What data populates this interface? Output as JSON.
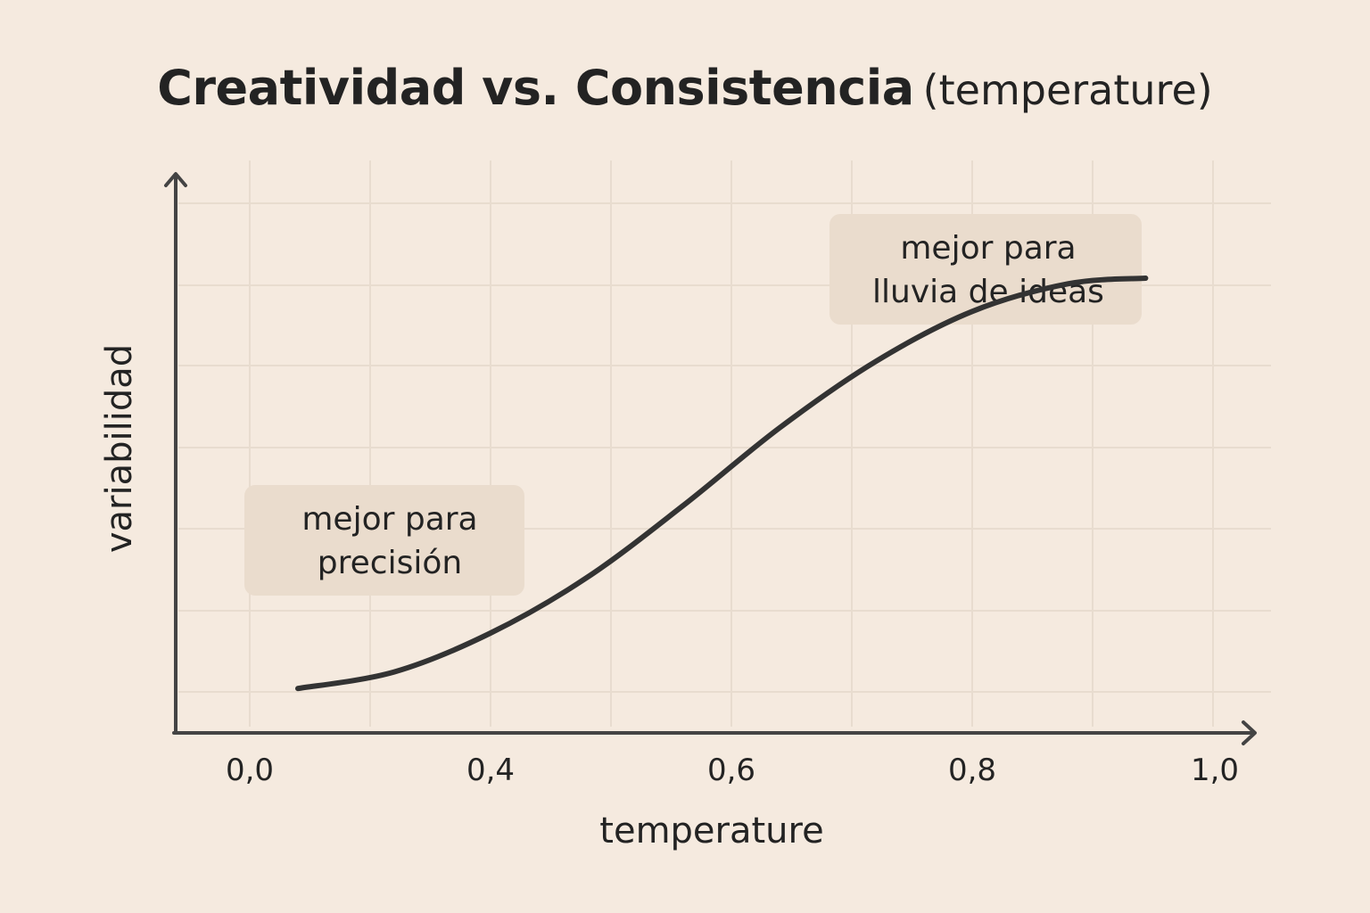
{
  "chart_data": {
    "type": "line",
    "title": "Creatividad vs. Consistencia",
    "subtitle": "(temperature)",
    "xlabel": "temperature",
    "ylabel": "variabilidad",
    "xticks": [
      "0,0",
      "0,4",
      "0,6",
      "0,8",
      "1,0"
    ],
    "grid": true,
    "series": [
      {
        "x": [
          0.05,
          0.15,
          0.25,
          0.35,
          0.45,
          0.55,
          0.65,
          0.75,
          0.85,
          0.93
        ],
        "y": [
          0.08,
          0.11,
          0.18,
          0.28,
          0.41,
          0.55,
          0.67,
          0.76,
          0.81,
          0.82
        ]
      }
    ],
    "annotations": [
      {
        "lines": [
          "mejor para",
          "precisión"
        ]
      },
      {
        "lines": [
          "mejor para",
          "lluvia de ideas"
        ]
      }
    ]
  },
  "colors": {
    "background": "#f5eadf",
    "line": "#333333",
    "axis": "#444444",
    "grid": "#e8dccf",
    "annotation_box": "#eadccd"
  }
}
